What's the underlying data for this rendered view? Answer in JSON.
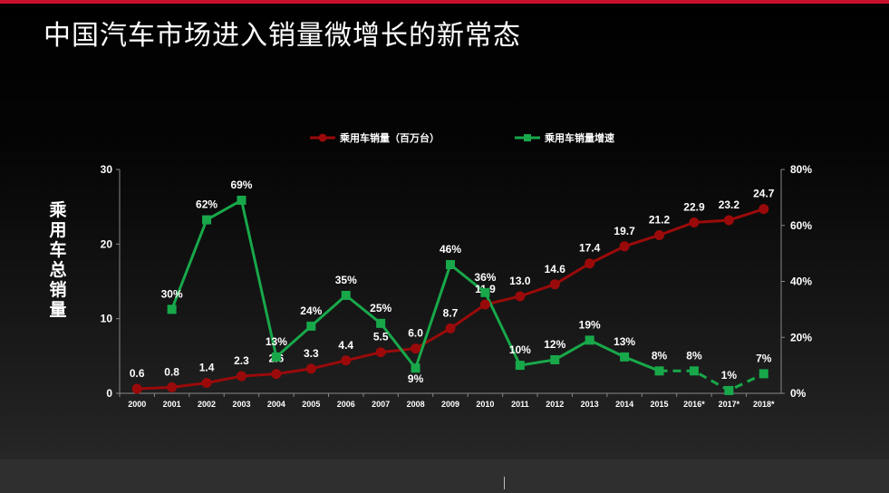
{
  "title": "中国汽车市场进入销量微增长的新常态",
  "colors": {
    "sales": "#9b0a0a",
    "growth": "#18a84a",
    "accent_bar": "#c8102e"
  },
  "chart_data": {
    "type": "line",
    "categories": [
      "2000",
      "2001",
      "2002",
      "2003",
      "2004",
      "2005",
      "2006",
      "2007",
      "2008",
      "2009",
      "2010",
      "2011",
      "2012",
      "2013",
      "2014",
      "2015",
      "2016*",
      "2017*",
      "2018*"
    ],
    "ylabel": "乘用车总销量",
    "ylim": [
      0,
      30
    ],
    "yticks": [
      "0",
      "10",
      "20",
      "30"
    ],
    "y2lim": [
      0,
      80
    ],
    "y2ticks": [
      "0%",
      "20%",
      "40%",
      "60%",
      "80%"
    ],
    "legend_position": "top-center",
    "series": [
      {
        "name": "乘用车销量（百万台）",
        "axis": "left",
        "marker": "circle",
        "values": [
          0.6,
          0.8,
          1.4,
          2.3,
          2.6,
          3.3,
          4.4,
          5.5,
          6.0,
          8.7,
          11.9,
          13.0,
          14.6,
          17.4,
          19.7,
          21.2,
          22.9,
          23.2,
          24.7
        ],
        "labels": [
          "0.6",
          "0.8",
          "1.4",
          "2.3",
          "2.6",
          "3.3",
          "4.4",
          "5.5",
          "6.0",
          "8.7",
          "11.9",
          "13.0",
          "14.6",
          "17.4",
          "19.7",
          "21.2",
          "22.9",
          "23.2",
          "24.7"
        ]
      },
      {
        "name": "乘用车销量增速",
        "axis": "right",
        "marker": "square",
        "dashed_from_index": 15,
        "values": [
          null,
          30,
          62,
          69,
          13,
          24,
          35,
          25,
          9,
          46,
          36,
          10,
          12,
          19,
          13,
          8,
          8,
          1,
          7
        ],
        "labels": [
          "",
          "30%",
          "62%",
          "69%",
          "13%",
          "24%",
          "35%",
          "25%",
          "9%",
          "46%",
          "36%",
          "10%",
          "12%",
          "19%",
          "13%",
          "8%",
          "8%",
          "1%",
          "7%"
        ]
      }
    ]
  }
}
